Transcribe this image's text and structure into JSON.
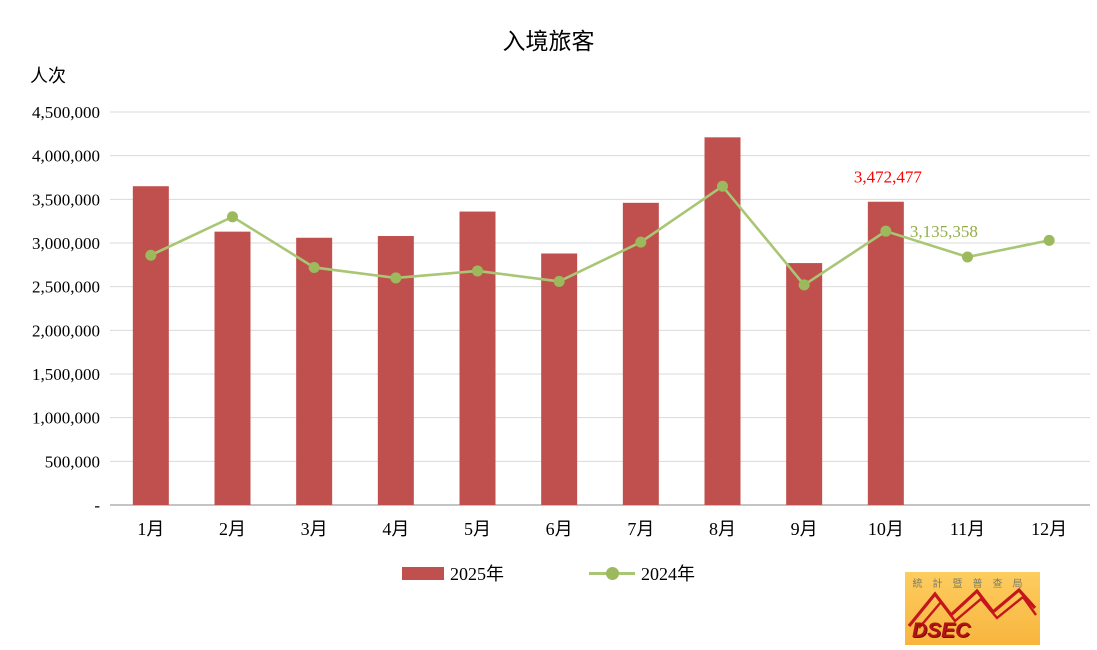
{
  "chart_data": {
    "type": "bar",
    "title": "入境旅客",
    "ylabel": "人次",
    "xlabel": "",
    "categories": [
      "1月",
      "2月",
      "3月",
      "4月",
      "5月",
      "6月",
      "7月",
      "8月",
      "9月",
      "10月",
      "11月",
      "12月"
    ],
    "series": [
      {
        "name": "2025年",
        "type": "bar",
        "color": "#C0504D",
        "values": [
          3650000,
          3130000,
          3060000,
          3080000,
          3360000,
          2880000,
          3460000,
          4210000,
          2770000,
          3472477,
          null,
          null
        ]
      },
      {
        "name": "2024年",
        "type": "line",
        "color": "#A9C674",
        "marker_color": "#9CBA5D",
        "values": [
          2860000,
          3300000,
          2720000,
          2600000,
          2680000,
          2560000,
          3010000,
          3650000,
          2520000,
          3135358,
          2840000,
          3030000
        ]
      }
    ],
    "ylim": [
      0,
      4500000
    ],
    "ytick_interval": 500000,
    "ytick_labels": [
      "-",
      "500,000",
      "1,000,000",
      "1,500,000",
      "2,000,000",
      "2,500,000",
      "3,000,000",
      "3,500,000",
      "4,000,000",
      "4,500,000"
    ],
    "grid": true,
    "legend_position": "bottom",
    "annotations": [
      {
        "text": "3,472,477",
        "series": "2025年",
        "category": "10月",
        "color": "#FF0000"
      },
      {
        "text": "3,135,358",
        "series": "2024年",
        "category": "10月",
        "color": "#8FAF46"
      }
    ]
  },
  "legend": {
    "items": [
      {
        "label": "2025年"
      },
      {
        "label": "2024年"
      }
    ]
  },
  "logo": {
    "org_name": "統計暨普查局",
    "acronym": "DSEC",
    "bg_color": "#FBBC49",
    "accent_color": "#C4161C"
  }
}
